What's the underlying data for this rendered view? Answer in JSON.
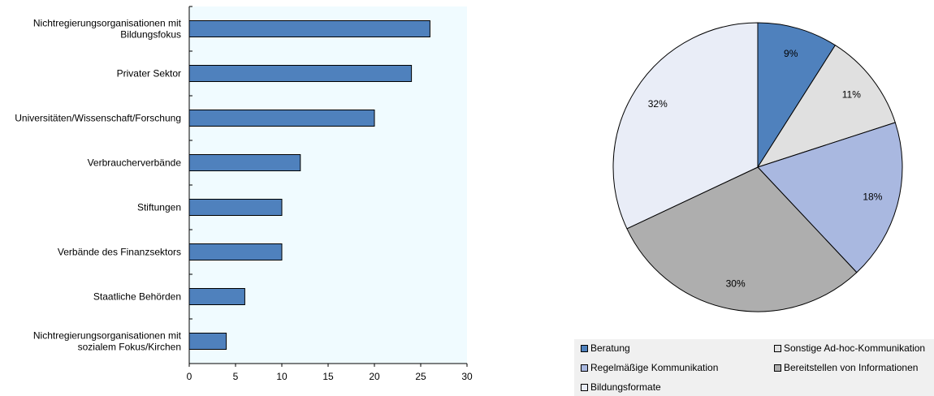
{
  "chart_data": [
    {
      "type": "bar",
      "orientation": "horizontal",
      "categories": [
        "Nichtregierungsorganisationen mit\nBildungsfokus",
        "Privater Sektor",
        "Universitäten/Wissenschaft/Forschung",
        "Verbraucherverbände",
        "Stiftungen",
        "Verbände des Finanzsektors",
        "Staatliche Behörden",
        "Nichtregierungsorganisationen mit\nsozialem Fokus/Kirchen"
      ],
      "values": [
        26,
        24,
        20,
        12,
        10,
        10,
        6,
        4
      ],
      "xlim": [
        0,
        30
      ],
      "xticks": [
        "0",
        "5",
        "10",
        "15",
        "20",
        "25",
        "30"
      ],
      "grid": false,
      "colors": {
        "bar": "#4f81bd",
        "plot_background": "#f0fbff"
      }
    },
    {
      "type": "pie",
      "slices": [
        {
          "name": "Beratung",
          "value": 9,
          "label": "9%",
          "color": "#4f81bd"
        },
        {
          "name": "Sonstige Ad-hoc-Kommunikation",
          "value": 11,
          "label": "11%",
          "color": "#e0e0e0"
        },
        {
          "name": "Regelmäßige Kommunikation",
          "value": 18,
          "label": "18%",
          "color": "#a9b8e0"
        },
        {
          "name": "Bereitstellen von Informationen",
          "value": 30,
          "label": "30%",
          "color": "#aeaeae"
        },
        {
          "name": "Bildungsformate",
          "value": 32,
          "label": "32%",
          "color": "#e9edf7"
        }
      ],
      "legend": {
        "placement": "bottom",
        "order": [
          "Beratung",
          "Sonstige Ad-hoc-Kommunikation",
          "Regelmäßige Kommunikation",
          "Bereitstellen von Informationen",
          "Bildungsformate"
        ]
      }
    }
  ]
}
